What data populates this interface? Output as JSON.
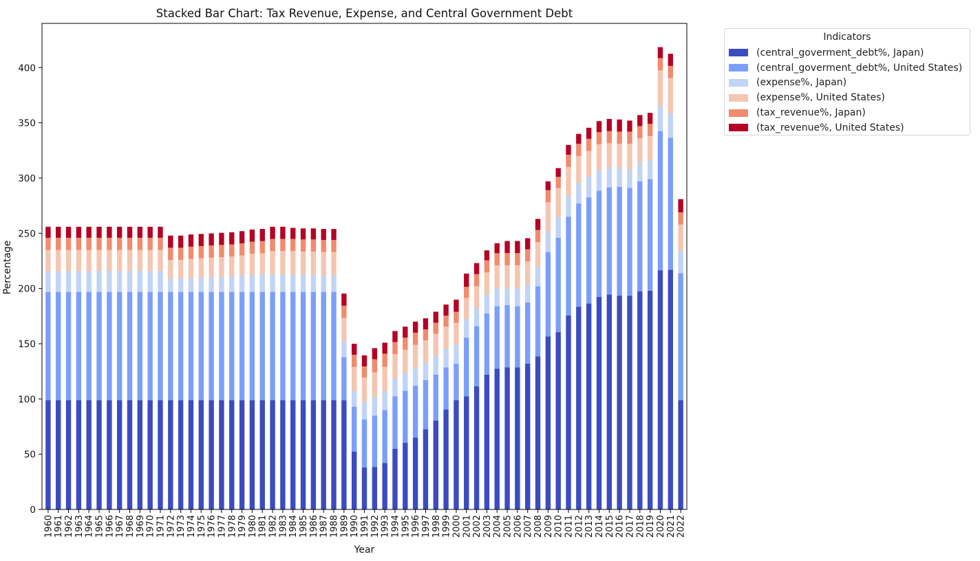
{
  "chart_data": {
    "type": "bar",
    "stacked": true,
    "title": "Stacked Bar Chart: Tax Revenue, Expense, and Central Government Debt",
    "xlabel": "Year",
    "ylabel": "Percentage",
    "ylim": [
      0,
      440
    ],
    "yticks": [
      0,
      50,
      100,
      150,
      200,
      250,
      300,
      350,
      400
    ],
    "legend_title": "Indicators",
    "legend_position": "outside-top-right",
    "categories": [
      "1960",
      "1961",
      "1962",
      "1963",
      "1964",
      "1965",
      "1966",
      "1967",
      "1968",
      "1969",
      "1970",
      "1971",
      "1972",
      "1973",
      "1974",
      "1975",
      "1976",
      "1977",
      "1978",
      "1979",
      "1980",
      "1981",
      "1982",
      "1983",
      "1984",
      "1985",
      "1986",
      "1987",
      "1988",
      "1989",
      "1990",
      "1991",
      "1992",
      "1993",
      "1994",
      "1995",
      "1996",
      "1997",
      "1998",
      "1999",
      "2000",
      "2001",
      "2002",
      "2003",
      "2004",
      "2005",
      "2006",
      "2007",
      "2008",
      "2009",
      "2010",
      "2011",
      "2012",
      "2013",
      "2014",
      "2015",
      "2016",
      "2017",
      "2018",
      "2019",
      "2020",
      "2021",
      "2022"
    ],
    "series": [
      {
        "name": "(central_goverment_debt%, Japan)",
        "color": "#3b4cc0",
        "values": [
          98.9,
          98.9,
          98.9,
          98.9,
          98.9,
          98.9,
          98.9,
          98.9,
          98.9,
          98.9,
          98.9,
          98.9,
          98.9,
          98.9,
          98.9,
          98.9,
          98.9,
          98.9,
          98.9,
          98.9,
          98.9,
          98.9,
          98.9,
          98.9,
          98.9,
          98.9,
          98.9,
          98.9,
          98.9,
          98.9,
          52.5,
          38,
          38.5,
          42,
          55,
          60.5,
          65,
          72.5,
          80.5,
          90.5,
          98.9,
          102.5,
          111.5,
          122,
          127.5,
          128.5,
          128.5,
          132,
          138.5,
          156.5,
          160.5,
          175.5,
          183.5,
          186.5,
          192.5,
          194.5,
          193.5,
          193.5,
          197.5,
          198,
          216.5,
          217,
          98.9
        ]
      },
      {
        "name": "(central_goverment_debt%, United States)",
        "color": "#7b9ff9",
        "values": [
          98,
          98,
          98,
          98,
          98,
          98,
          98,
          98,
          98,
          98,
          98,
          98,
          98,
          98,
          98,
          98,
          98,
          98,
          98,
          98,
          98,
          98,
          98,
          98,
          98,
          98,
          98,
          98,
          98,
          39,
          40.5,
          43.5,
          46.5,
          48,
          47.5,
          47,
          47,
          44.5,
          41.5,
          38,
          33,
          53,
          54.5,
          55.5,
          56.5,
          56.5,
          55.5,
          55.5,
          63.5,
          76.5,
          85.5,
          89.5,
          93.5,
          96,
          96,
          97,
          98.5,
          97.5,
          99.5,
          101,
          126,
          119.5,
          115
        ]
      },
      {
        "name": "(expense%, Japan)",
        "color": "#c0d4f5",
        "values": [
          19,
          19,
          19,
          19,
          19,
          19,
          19,
          19,
          19,
          19,
          19,
          19,
          12,
          12,
          12,
          12.5,
          13,
          13.5,
          14,
          15,
          15.5,
          16,
          16,
          16,
          16,
          15.5,
          15.5,
          15,
          15,
          14.5,
          14,
          16,
          17,
          17,
          16,
          16,
          16,
          16,
          17,
          17,
          17,
          17,
          16,
          17,
          16,
          15,
          16,
          16,
          18,
          19,
          19,
          19,
          19,
          19,
          19,
          18,
          17,
          17,
          17,
          17,
          23,
          22,
          20
        ]
      },
      {
        "name": "(expense%, United States)",
        "color": "#f4c6b0",
        "values": [
          19,
          19,
          19,
          19,
          19,
          19,
          19,
          19,
          19,
          19,
          19,
          19,
          17,
          17,
          18,
          18,
          18,
          18,
          18,
          18,
          19,
          19,
          21,
          21,
          21,
          21,
          21,
          21,
          21,
          21,
          22,
          22,
          22,
          22,
          22,
          21,
          21,
          20,
          20,
          20,
          20,
          19,
          20,
          20,
          21,
          21,
          21,
          21,
          22,
          26,
          26,
          26,
          24,
          23,
          23,
          22,
          22,
          23,
          22,
          22,
          32,
          32,
          24
        ]
      },
      {
        "name": "(tax_revenue%, Japan)",
        "color": "#f08b6e",
        "values": [
          11,
          11,
          11,
          11,
          11,
          11,
          11,
          11,
          11,
          11,
          11,
          11,
          11,
          11,
          11,
          11,
          11,
          11,
          11,
          11,
          11,
          11,
          11,
          11,
          11,
          11,
          11,
          11,
          11,
          11,
          11,
          10,
          12,
          12,
          11,
          11,
          11,
          10,
          10,
          10,
          10,
          10,
          11,
          11,
          11,
          11,
          11,
          11,
          11,
          11,
          10,
          11,
          11,
          11,
          11,
          11,
          11,
          11,
          11,
          11,
          11,
          11,
          11
        ]
      },
      {
        "name": "(tax_revenue%, United States)",
        "color": "#b40426",
        "values": [
          10,
          10,
          10,
          10,
          10,
          10,
          10,
          10,
          10,
          10,
          10,
          10,
          11,
          11,
          11,
          11,
          11,
          11,
          11,
          11,
          11,
          11,
          11,
          11,
          10,
          10,
          10,
          10,
          10,
          11,
          10,
          10,
          10,
          10,
          10,
          10,
          10,
          10,
          10,
          10,
          11,
          12,
          10,
          9,
          9,
          11,
          11,
          10,
          10,
          8,
          8,
          9,
          9,
          10,
          10,
          11,
          11,
          10,
          10,
          10,
          10,
          11,
          12
        ]
      }
    ]
  }
}
